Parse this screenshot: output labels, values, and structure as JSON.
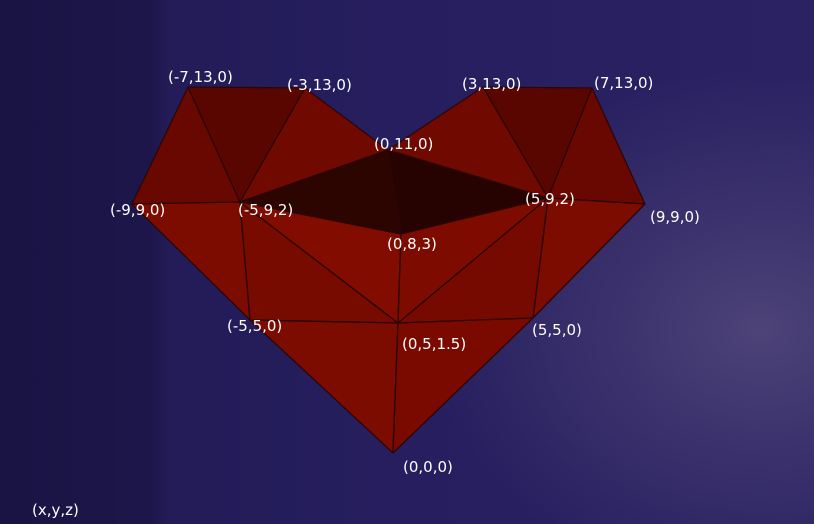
{
  "colors": {
    "background": "#261e5e",
    "face": "#7a0a00",
    "face_dark": "#5c0800",
    "face_darkest": "#2a0400",
    "edge": "#2b0606",
    "label": "#ffffff"
  },
  "vertices": {
    "v_m7_13_0": "(-7,13,0)",
    "v_m3_13_0": "(-3,13,0)",
    "v_3_13_0": "(3,13,0)",
    "v_7_13_0": "(7,13,0)",
    "v_0_11_0": "(0,11,0)",
    "v_m9_9_0": "(-9,9,0)",
    "v_m5_9_2": "(-5,9,2)",
    "v_5_9_2": "(5,9,2)",
    "v_9_9_0": "(9,9,0)",
    "v_0_8_3": "(0,8,3)",
    "v_m5_5_0": "(-5,5,0)",
    "v_0_5_1_5": "(0,5,1.5)",
    "v_5_5_0": "(5,5,0)",
    "v_0_0_0": "(0,0,0)"
  },
  "axis_legend": "(x,y,z)"
}
